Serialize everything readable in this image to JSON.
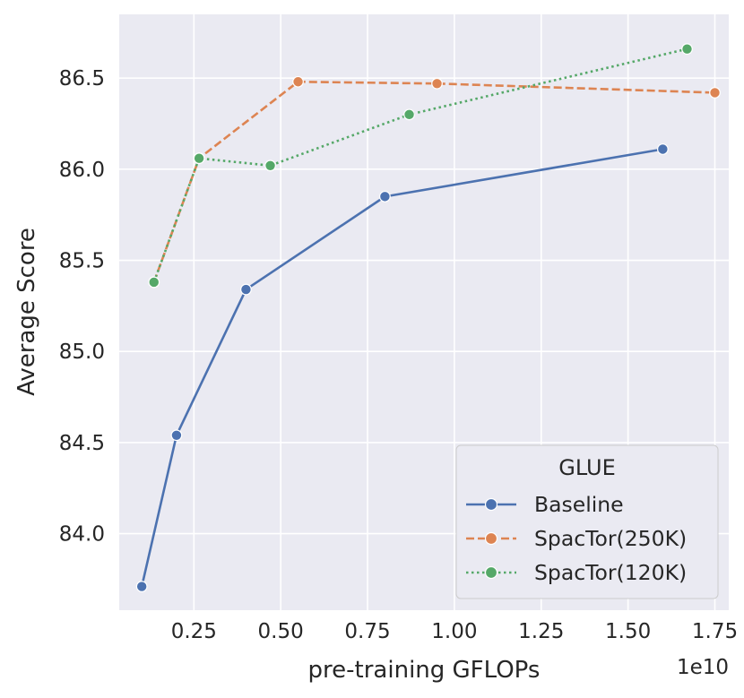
{
  "chart_data": {
    "type": "line",
    "xlabel": "pre-training GFLOPs",
    "ylabel": "Average Score",
    "x_offset_label": "1e10",
    "xlim": [
      0.035,
      1.79
    ],
    "ylim": [
      83.58,
      86.85
    ],
    "xticks": [
      0.25,
      0.5,
      0.75,
      1.0,
      1.25,
      1.5,
      1.75
    ],
    "xtick_labels": [
      "0.25",
      "0.50",
      "0.75",
      "1.00",
      "1.25",
      "1.50",
      "1.75"
    ],
    "yticks": [
      84.0,
      84.5,
      85.0,
      85.5,
      86.0,
      86.5
    ],
    "ytick_labels": [
      "84.0",
      "84.5",
      "85.0",
      "85.5",
      "86.0",
      "86.5"
    ],
    "grid": true,
    "background": "#eaeaf2",
    "legend": {
      "title": "GLUE",
      "position": "lower-right"
    },
    "series": [
      {
        "name": "Baseline",
        "color": "#4c72b0",
        "dash": "solid",
        "x": [
          0.1,
          0.2,
          0.4,
          0.8,
          1.6
        ],
        "y": [
          83.71,
          84.54,
          85.34,
          85.85,
          86.11
        ]
      },
      {
        "name": "SpacTor(250K)",
        "color": "#dd8452",
        "dash": "dashed",
        "x": [
          0.135,
          0.265,
          0.55,
          0.95,
          1.75
        ],
        "y": [
          85.38,
          86.06,
          86.48,
          86.47,
          86.42
        ]
      },
      {
        "name": "SpacTor(120K)",
        "color": "#55a868",
        "dash": "dotted",
        "x": [
          0.135,
          0.265,
          0.47,
          0.87,
          1.67
        ],
        "y": [
          85.38,
          86.06,
          86.02,
          86.3,
          86.66
        ]
      }
    ]
  }
}
